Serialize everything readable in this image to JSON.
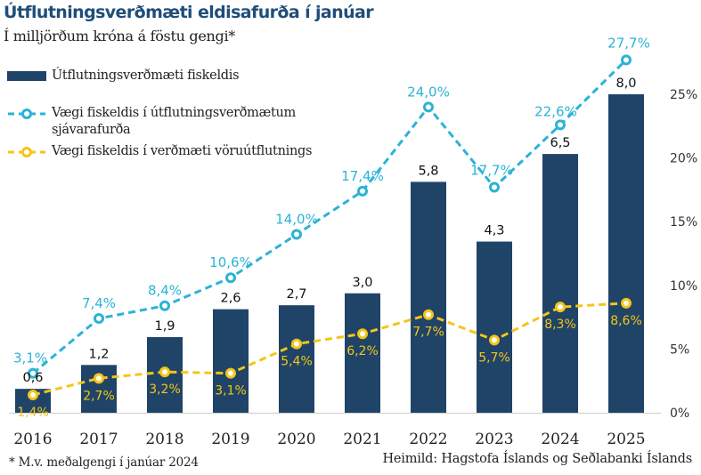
{
  "title": "Útflutningsverðmæti eldisafurða í janúar",
  "subtitle": "Í milljörðum króna á föstu gengi*",
  "footnote": "* M.v. meðalgengi í janúar 2024",
  "source": "Heimild: Hagstofa Íslands og Seðlabanki Íslands",
  "colors": {
    "bar": "#1f4468",
    "cyan": "#2bb3d6",
    "yellow": "#f5c518",
    "baseline": "#cccccc"
  },
  "legend": [
    {
      "label": "Útflutningsverðmæti fiskeldis",
      "type": "bar"
    },
    {
      "label_line1": "Vægi fiskeldis í útflutningsverðmætum",
      "label_line2": "sjávarafurða",
      "type": "line-cyan"
    },
    {
      "label": "Vægi fiskeldis í verðmæti vöruútflutnings",
      "type": "line-yellow"
    }
  ],
  "chart_data": {
    "type": "bar",
    "title": "Útflutningsverðmæti eldisafurða í janúar",
    "subtitle": "Í milljörðum króna á föstu gengi*",
    "categories": [
      "2016",
      "2017",
      "2018",
      "2019",
      "2020",
      "2021",
      "2022",
      "2023",
      "2024",
      "2025"
    ],
    "series": [
      {
        "name": "Útflutningsverðmæti fiskeldis",
        "type": "bar",
        "axis": "left",
        "values": [
          0.6,
          1.2,
          1.9,
          2.6,
          2.7,
          3.0,
          5.8,
          4.3,
          6.5,
          8.0
        ],
        "labels": [
          "0,6",
          "1,2",
          "1,9",
          "2,6",
          "2,7",
          "3,0",
          "5,8",
          "4,3",
          "6,5",
          "8,0"
        ]
      },
      {
        "name": "Vægi fiskeldis í útflutningsverðmætum sjávarafurða",
        "type": "line",
        "axis": "right",
        "values": [
          3.1,
          7.4,
          8.4,
          10.6,
          14.0,
          17.4,
          24.0,
          17.7,
          22.6,
          27.7
        ],
        "labels": [
          "3,1%",
          "7,4%",
          "8,4%",
          "10,6%",
          "14,0%",
          "17,4%",
          "24,0%",
          "17,7%",
          "22,6%",
          "27,7%"
        ]
      },
      {
        "name": "Vægi fiskeldis í verðmæti vöruútflutnings",
        "type": "line",
        "axis": "right",
        "values": [
          1.4,
          2.7,
          3.2,
          3.1,
          5.4,
          6.2,
          7.7,
          5.7,
          8.3,
          8.6
        ],
        "labels": [
          "1,4%",
          "2,7%",
          "3,2%",
          "3,1%",
          "5,4%",
          "6,2%",
          "7,7%",
          "5,7%",
          "8,3%",
          "8,6%"
        ]
      }
    ],
    "left_axis": {
      "range": [
        0,
        8
      ],
      "unit": "milljarðar króna",
      "ticks_shown": false
    },
    "right_axis": {
      "range": [
        0,
        25
      ],
      "ticks": [
        0,
        5,
        10,
        15,
        20,
        25
      ],
      "tick_labels": [
        "0%",
        "5%",
        "10%",
        "15%",
        "20%",
        "25%"
      ]
    },
    "grid": false,
    "legend_position": "top-left",
    "xlabel": "",
    "ylabel": ""
  }
}
